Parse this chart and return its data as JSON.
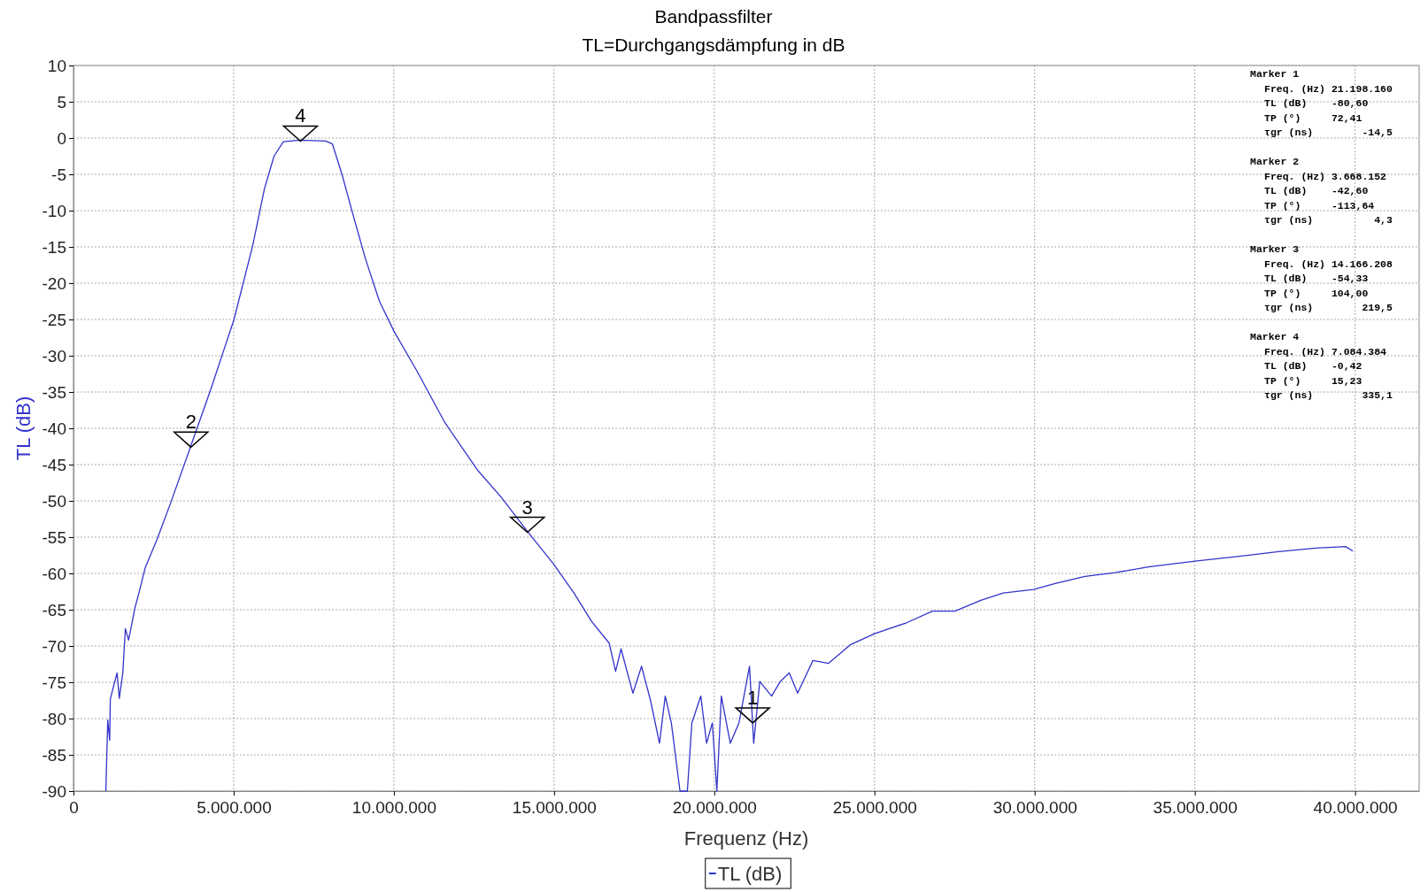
{
  "chart_data": {
    "type": "line",
    "title": "Bandpassfilter",
    "subtitle": "TL=Durchgangsdämpfung in dB",
    "xlabel": "Frequenz (Hz)",
    "ylabel": "TL (dB)",
    "xlim": [
      0,
      42000000
    ],
    "ylim": [
      -90,
      10
    ],
    "xticks": [
      0,
      {
        "value": 5000000,
        "label": "5.000.000"
      },
      {
        "value": 10000000,
        "label": "10.000.000"
      },
      {
        "value": 15000000,
        "label": "15.000.000"
      },
      {
        "value": 20000000,
        "label": "20.000.000"
      },
      {
        "value": 25000000,
        "label": "25.000.000"
      },
      {
        "value": 30000000,
        "label": "30.000.000"
      },
      {
        "value": 35000000,
        "label": "35.000.000"
      },
      {
        "value": 40000000,
        "label": "40.000.000"
      }
    ],
    "yticks": [
      10,
      5,
      0,
      -5,
      -10,
      -15,
      -20,
      -25,
      -30,
      -35,
      -40,
      -45,
      -50,
      -55,
      -60,
      -65,
      -70,
      -75,
      -80,
      -85,
      -90
    ],
    "grid": true,
    "legend": "bottom",
    "marker": "none",
    "line_style": "solid",
    "series": [
      {
        "name": "TL (dB)",
        "color": "#3333cc",
        "x": [
          1010000,
          1070000,
          1130000,
          1150000,
          1360000,
          1430000,
          1540000,
          1620000,
          1720000,
          1920000,
          2020000,
          2240000,
          2600000,
          3040000,
          3650000,
          4280000,
          5010000,
          5600000,
          5960000,
          6260000,
          6550000,
          7060000,
          7870000,
          8080000,
          8380000,
          8740000,
          9110000,
          9550000,
          10000000,
          10720000,
          11590000,
          12600000,
          13350000,
          14150000,
          15000000,
          15620000,
          16170000,
          16720000,
          16920000,
          17090000,
          17460000,
          17730000,
          18010000,
          18290000,
          18470000,
          18660000,
          18930000,
          19160000,
          19300000,
          19580000,
          19760000,
          19940000,
          20080000,
          20220000,
          20500000,
          20770000,
          21100000,
          21230000,
          21420000,
          21790000,
          22060000,
          22340000,
          22600000,
          23080000,
          23560000,
          24260000,
          25000000,
          26000000,
          26810000,
          27510000,
          28320000,
          29020000,
          29970000,
          30640000,
          31570000,
          32500000,
          33550000,
          35000000,
          36450000,
          37610000,
          38770000,
          39700000,
          39930000
        ],
        "values": [
          -90,
          -80.2,
          -83,
          -77.3,
          -73.7,
          -77.2,
          -73.7,
          -67.6,
          -69.2,
          -64.7,
          -63.1,
          -59.2,
          -55.4,
          -50.2,
          -42.6,
          -34.7,
          -25,
          -14.7,
          -7,
          -2.5,
          -0.5,
          -0.3,
          -0.4,
          -0.8,
          -5,
          -10.8,
          -16.6,
          -22.5,
          -26.6,
          -32.1,
          -39.2,
          -45.7,
          -49.5,
          -54.1,
          -58.8,
          -62.7,
          -66.6,
          -69.6,
          -73.5,
          -70.4,
          -76.5,
          -72.8,
          -77.5,
          -83.4,
          -76.9,
          -80.6,
          -90,
          -90,
          -80.6,
          -76.9,
          -83.4,
          -80.6,
          -90,
          -76.9,
          -83.4,
          -80.6,
          -72.8,
          -83.4,
          -74.9,
          -76.9,
          -74.9,
          -73.7,
          -76.5,
          -72,
          -72.4,
          -69.8,
          -68.3,
          -66.8,
          -65.2,
          -65.2,
          -63.7,
          -62.7,
          -62.2,
          -61.4,
          -60.4,
          -59.9,
          -59.1,
          -58.3,
          -57.6,
          -57,
          -56.5,
          -56.3,
          -56.9
        ]
      }
    ],
    "annotations": [
      {
        "text": "1",
        "x": 21198160,
        "y": -80.6
      },
      {
        "text": "2",
        "x": 3668152,
        "y": -42.6
      },
      {
        "text": "3",
        "x": 14166208,
        "y": -54.33
      },
      {
        "text": "4",
        "x": 7084384,
        "y": -0.42
      },
      "Marker 1",
      "Freq. (Hz) 21.198.160",
      "TL (dB)    -80,60",
      "TP (°)     72,41",
      "τgr (ns)        -14,5",
      "Marker 2",
      "Freq. (Hz) 3.668.152",
      "TL (dB)    -42,60",
      "TP (°)     -113,64",
      "τgr (ns)          4,3",
      "Marker 3",
      "Freq. (Hz) 14.166.208",
      "TL (dB)    -54,33",
      "TP (°)     104,00",
      "τgr (ns)        219,5",
      "Marker 4",
      "Freq. (Hz) 7.084.384",
      "TL (dB)    -0,42",
      "TP (°)     15,23",
      "τgr (ns)        335,1"
    ]
  }
}
